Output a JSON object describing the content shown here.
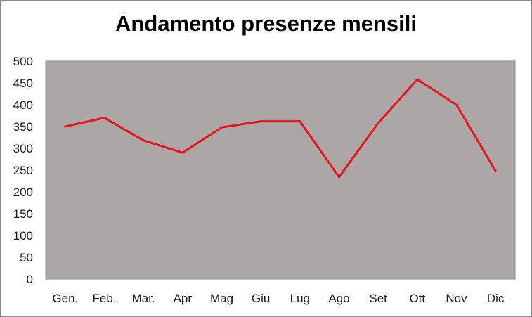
{
  "chart_data": {
    "type": "line",
    "title": "Andamento presenze mensili",
    "xlabel": "",
    "ylabel": "",
    "categories": [
      "Gen.",
      "Feb.",
      "Mar.",
      "Apr",
      "Mag",
      "Giu",
      "Lug",
      "Ago",
      "Set",
      "Ott",
      "Nov",
      "Dic"
    ],
    "series": [
      {
        "values": [
          350,
          370,
          318,
          290,
          348,
          362,
          362,
          234,
          358,
          458,
          400,
          248
        ]
      }
    ],
    "yticks": [
      0,
      50,
      100,
      150,
      200,
      250,
      300,
      350,
      400,
      450,
      500
    ],
    "ylim": [
      0,
      500
    ],
    "grid": false,
    "legend": "none",
    "colors": {
      "line": "#e8141c",
      "plot_background": "#aba7a7"
    }
  }
}
